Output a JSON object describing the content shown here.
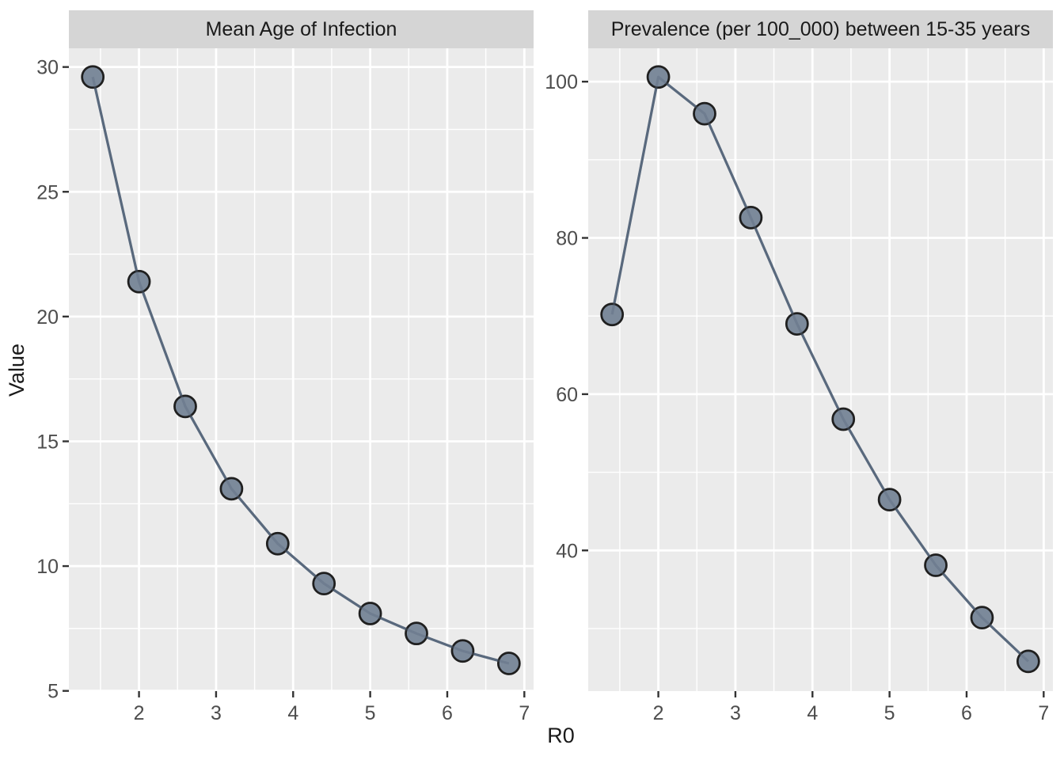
{
  "figure": {
    "x_axis_label": "R0",
    "y_axis_label": "Value"
  },
  "chart_data": [
    {
      "type": "line",
      "title": "Mean Age of Infection",
      "xlabel": "R0",
      "ylabel": "Value",
      "x": [
        1.4,
        2.0,
        2.6,
        3.2,
        3.8,
        4.4,
        5.0,
        5.6,
        6.2,
        6.8
      ],
      "values": [
        29.6,
        21.4,
        16.4,
        13.1,
        10.9,
        9.3,
        8.1,
        7.3,
        6.6,
        6.1
      ],
      "xlim": [
        1.09,
        7.12
      ],
      "ylim": [
        4.99,
        30.75
      ],
      "x_major_ticks": [
        2,
        3,
        4,
        5,
        6,
        7
      ],
      "x_minor_ticks": [
        1.5,
        2.5,
        3.5,
        4.5,
        5.5,
        6.5
      ],
      "y_major_ticks": [
        5,
        10,
        15,
        20,
        25,
        30
      ],
      "y_minor_ticks": [
        7.5,
        12.5,
        17.5,
        22.5,
        27.5
      ],
      "grid": "major+minor white on grey panel",
      "legend": "none"
    },
    {
      "type": "line",
      "title": "Prevalence (per 100_000) between 15-35 years",
      "xlabel": "R0",
      "ylabel": "Value",
      "x": [
        1.4,
        2.0,
        2.6,
        3.2,
        3.8,
        4.4,
        5.0,
        5.6,
        6.2,
        6.8
      ],
      "values": [
        70.2,
        100.6,
        95.9,
        82.6,
        69.0,
        56.8,
        46.5,
        38.1,
        31.4,
        25.8
      ],
      "xlim": [
        1.09,
        7.12
      ],
      "ylim": [
        21.99,
        104.27
      ],
      "x_major_ticks": [
        2,
        3,
        4,
        5,
        6,
        7
      ],
      "x_minor_ticks": [
        1.5,
        2.5,
        3.5,
        4.5,
        5.5,
        6.5
      ],
      "y_major_ticks": [
        40,
        60,
        80,
        100
      ],
      "y_minor_ticks": [
        30,
        50,
        70,
        90
      ],
      "grid": "major+minor white on grey panel",
      "legend": "none"
    }
  ],
  "style": {
    "background": "#FFFFFF",
    "panel_bg": "#EBEBEB",
    "strip_bg": "#D5D5D5",
    "grid_color": "#FFFFFF",
    "line_color": "#5A697D",
    "point_fill": "#7C8A9B",
    "point_stroke": "#1F1F1F",
    "tick_mark_color": "#333333",
    "tick_label_color": "#4D4D4D",
    "title_color": "#1A1A1A"
  }
}
